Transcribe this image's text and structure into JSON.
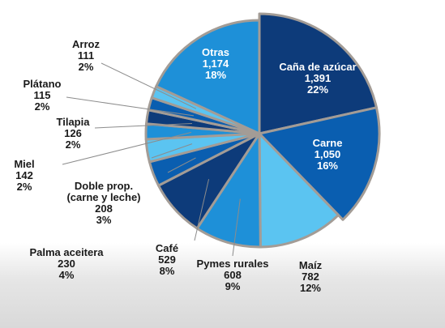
{
  "chart_data": {
    "type": "pie",
    "categories": [
      "Caña de azúcar",
      "Carne",
      "Maíz",
      "Pymes rurales",
      "Café",
      "Palma aceitera",
      "Doble prop. (carne y leche)",
      "Miel",
      "Tilapia",
      "Plátano",
      "Arroz",
      "Otras"
    ],
    "values": [
      1391,
      1050,
      782,
      608,
      529,
      230,
      208,
      142,
      126,
      115,
      111,
      1174
    ],
    "value_labels": [
      "1,391",
      "1,050",
      "782",
      "608",
      "529",
      "230",
      "208",
      "142",
      "126",
      "115",
      "111",
      "1,174"
    ],
    "percent_labels": [
      "22%",
      "16%",
      "12%",
      "9%",
      "8%",
      "4%",
      "3%",
      "2%",
      "2%",
      "2%",
      "2%",
      "18%"
    ],
    "colors": [
      "#0d3b7a",
      "#0a5eb0",
      "#5bc4f1",
      "#1e90d8",
      "#0d3b7a",
      "#0a5eb0",
      "#5bc4f1",
      "#1e90d8",
      "#0d3b7a",
      "#0a5eb0",
      "#5bc4f1",
      "#1e90d8"
    ]
  }
}
